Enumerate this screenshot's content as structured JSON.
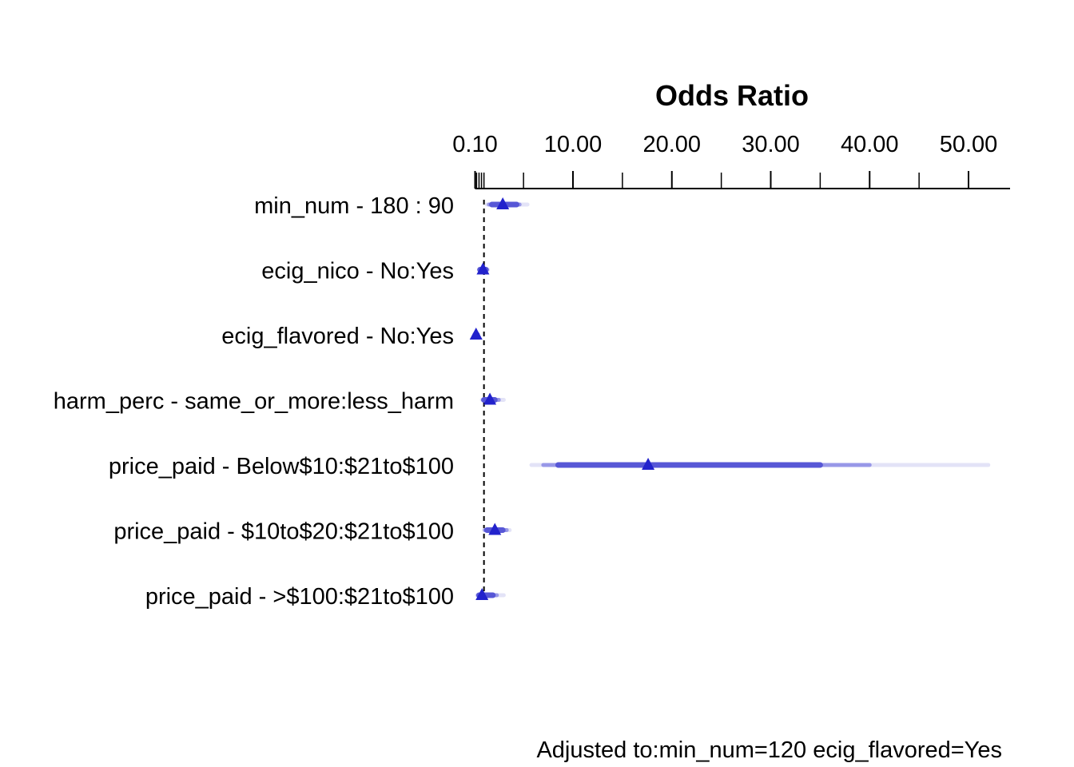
{
  "chart_data": {
    "type": "forest",
    "axis_title": "Odds Ratio",
    "x_scale": "linear",
    "x_ticks": [
      0.1,
      10,
      20,
      30,
      40,
      50
    ],
    "x_tick_labels": [
      "0.10",
      "10.00",
      "20.00",
      "30.00",
      "40.00",
      "50.00"
    ],
    "x_minor_ticks": [
      0.25,
      0.5,
      0.75,
      1.0,
      5,
      15,
      25,
      35,
      45
    ],
    "xlim": [
      0.1,
      54.2
    ],
    "reference_line": 1,
    "intervals_shown": [
      "0.99",
      "0.95",
      "0.90"
    ],
    "marker": "triangle",
    "rows": [
      {
        "label": "min_num - 180 : 90",
        "or": 2.9,
        "ci90": [
          1.8,
          4.3
        ],
        "ci95": [
          1.5,
          4.6
        ],
        "ci99": [
          1.3,
          5.4
        ]
      },
      {
        "label": "ecig_nico - No:Yes",
        "or": 0.9,
        "ci90": [
          0.6,
          1.2
        ],
        "ci95": [
          0.55,
          1.3
        ],
        "ci99": [
          0.5,
          1.4
        ]
      },
      {
        "label": "ecig_flavored - No:Yes",
        "or": 0.2,
        "ci90": [
          0.12,
          0.3
        ],
        "ci95": [
          0.11,
          0.32
        ],
        "ci99": [
          0.1,
          0.35
        ]
      },
      {
        "label": "harm_perc - same_or_more:less_harm",
        "or": 1.6,
        "ci90": [
          1.0,
          2.1
        ],
        "ci95": [
          0.9,
          2.5
        ],
        "ci99": [
          0.8,
          3.0
        ]
      },
      {
        "label": "price_paid - Below$10:$21to$100",
        "or": 17.6,
        "ci90": [
          8.5,
          35.0
        ],
        "ci95": [
          7.0,
          40.0
        ],
        "ci99": [
          5.8,
          52.0
        ]
      },
      {
        "label": "price_paid - $10to$20:$21to$100",
        "or": 2.1,
        "ci90": [
          1.3,
          2.9
        ],
        "ci95": [
          1.1,
          3.3
        ],
        "ci99": [
          1.0,
          3.6
        ]
      },
      {
        "label": "price_paid - >$100:$21to$100",
        "or": 0.8,
        "ci90": [
          0.5,
          1.9
        ],
        "ci95": [
          0.4,
          2.3
        ],
        "ci99": [
          0.3,
          3.0
        ]
      }
    ],
    "footnote": "Adjusted to:min_num=120 ecig_flavored=Yes"
  },
  "colors": {
    "marker": "#2222cc",
    "ci90": "#5757d6",
    "ci95": "#9898e8",
    "ci99": "#e3e3f7",
    "axis": "#000000"
  }
}
